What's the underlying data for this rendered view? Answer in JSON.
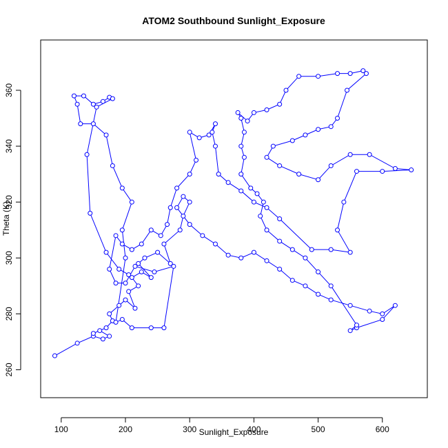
{
  "chart_data": {
    "type": "line",
    "markers": true,
    "color": "#0000ff",
    "title": "ATOM2 Southbound Sunlight_Exposure",
    "x_label": "Sunlight_Exposure",
    "y_label": "Theta (K)",
    "xlim": [
      68,
      670
    ],
    "ylim": [
      250,
      378
    ],
    "xticks": [
      100,
      200,
      300,
      400,
      500,
      600
    ],
    "yticks": [
      260,
      280,
      300,
      320,
      340,
      360
    ],
    "x": [
      90,
      125,
      150,
      165,
      175,
      160,
      150,
      170,
      180,
      175,
      190,
      200,
      215,
      205,
      220,
      210,
      225,
      240,
      220,
      230,
      250,
      270,
      260,
      285,
      290,
      300,
      290,
      280,
      300,
      320,
      340,
      360,
      380,
      400,
      420,
      440,
      460,
      480,
      500,
      520,
      550,
      580,
      600,
      620,
      600,
      560,
      550,
      560,
      520,
      500,
      480,
      460,
      440,
      420,
      410,
      415,
      405,
      395,
      380,
      385,
      380,
      385,
      380,
      375,
      390,
      400,
      420,
      440,
      450,
      470,
      500,
      530,
      550,
      570,
      575,
      545,
      530,
      520,
      500,
      480,
      460,
      430,
      420,
      440,
      470,
      500,
      520,
      550,
      580,
      620,
      645,
      600,
      560,
      540,
      530,
      550,
      520,
      490,
      440,
      420,
      400,
      380,
      360,
      345,
      340,
      335,
      340,
      330,
      315,
      300,
      310,
      300,
      280,
      270,
      265,
      255,
      240,
      225,
      210,
      195,
      185,
      175,
      185,
      200,
      215,
      245,
      275,
      260,
      240,
      210,
      195,
      185,
      200,
      195,
      210,
      195,
      180,
      170,
      150,
      130,
      125,
      120,
      135,
      150,
      165,
      175,
      180,
      155,
      140,
      145,
      170,
      190,
      205
    ],
    "values": [
      265,
      269.5,
      272,
      271,
      272,
      274,
      273,
      275,
      277.5,
      280,
      283,
      285,
      282,
      288,
      290,
      293,
      295,
      293,
      298,
      300,
      302,
      298,
      305,
      310,
      315,
      320,
      322,
      318,
      312,
      308,
      305,
      301,
      300,
      302,
      299,
      296,
      292,
      290,
      287,
      285,
      283,
      281,
      280,
      283,
      278,
      275,
      274,
      276,
      290,
      295,
      300,
      303,
      306,
      310,
      315,
      320,
      323,
      325,
      330,
      336,
      340,
      345,
      350,
      352,
      349,
      352,
      353,
      355,
      360,
      365,
      365,
      366,
      366,
      367,
      366,
      360,
      350,
      347,
      346,
      344,
      342,
      340,
      336,
      333,
      330,
      328,
      333,
      337,
      337,
      332,
      331.5,
      331,
      331,
      320,
      310,
      302,
      303,
      303,
      314,
      318,
      320,
      324,
      327,
      330,
      340,
      345,
      348,
      344,
      343,
      345,
      335,
      330,
      325,
      318,
      312,
      308,
      310,
      305,
      303,
      305,
      308,
      296,
      291,
      291,
      297,
      295,
      297,
      275,
      275,
      275,
      278,
      277,
      300,
      310,
      320,
      325,
      333,
      344,
      348,
      348,
      355,
      358,
      358,
      355,
      356,
      357.5,
      357,
      354,
      337,
      316,
      302,
      296,
      294
    ]
  }
}
